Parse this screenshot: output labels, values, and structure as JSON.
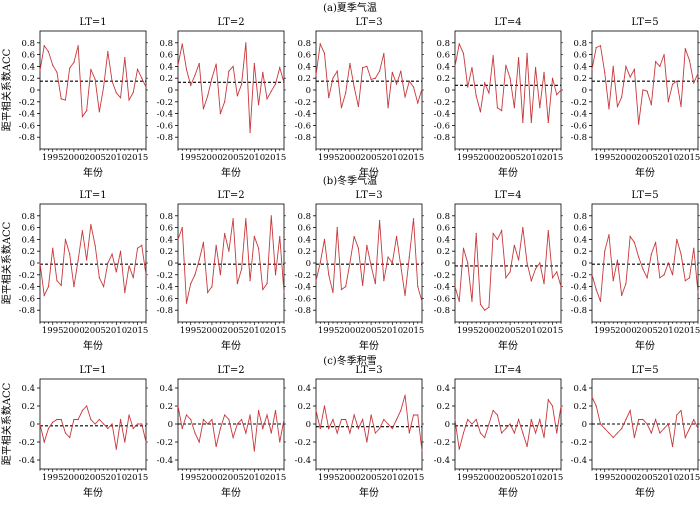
{
  "figure": {
    "xlabel": "年份",
    "ylabel": "距平相关系数ACC",
    "line_color": "#c8383c",
    "ref_color": "#000000"
  },
  "chart_data": [
    {
      "type": "line",
      "title": "(a)夏季气温",
      "xlabel": "年份",
      "ylabel": "距平相关系数ACC",
      "ylim": [
        -1,
        1
      ],
      "yticks": [
        0.8,
        0.6,
        0.4,
        0.2,
        0,
        -0.2,
        -0.4,
        -0.6,
        -0.8
      ],
      "xlim": [
        1992,
        2017
      ],
      "xticks": [
        1995,
        2000,
        2005,
        2010,
        2015
      ],
      "panels": [
        {
          "name": "LT=1",
          "ref": 0.15,
          "x_start": 1992,
          "values": [
            0.33,
            0.75,
            0.65,
            0.42,
            0.3,
            -0.15,
            -0.17,
            0.37,
            0.47,
            0.75,
            -0.45,
            -0.35,
            0.35,
            0.18,
            -0.37,
            0.05,
            0.65,
            0.15,
            -0.05,
            -0.13,
            0.55,
            -0.17,
            -0.04,
            0.35,
            0.2,
            0.05
          ]
        },
        {
          "name": "LT=2",
          "ref": 0.13,
          "x_start": 1992,
          "values": [
            0.42,
            0.78,
            0.35,
            0.08,
            0.25,
            0.45,
            -0.32,
            -0.1,
            0.2,
            0.44,
            -0.4,
            -0.2,
            0.32,
            0.4,
            -0.1,
            0.1,
            0.8,
            -0.72,
            0.45,
            -0.25,
            0.3,
            -0.15,
            -0.02,
            0.1,
            0.38,
            0.12
          ]
        },
        {
          "name": "LT=3",
          "ref": 0.15,
          "x_start": 1992,
          "values": [
            0.25,
            0.78,
            0.62,
            -0.13,
            0.2,
            0.32,
            -0.3,
            -0.05,
            0.45,
            0.05,
            -0.28,
            0.38,
            0.4,
            0.18,
            0.2,
            0.32,
            0.62,
            -0.3,
            0.3,
            0.1,
            0.32,
            -0.12,
            0.15,
            0.05,
            -0.22,
            0.02
          ]
        },
        {
          "name": "LT=4",
          "ref": 0.08,
          "x_start": 1992,
          "values": [
            0.4,
            0.78,
            0.62,
            0.05,
            0.38,
            -0.1,
            -0.37,
            0.12,
            -0.05,
            0.58,
            -0.3,
            -0.35,
            0.42,
            0.2,
            -0.3,
            0.55,
            -0.55,
            0.62,
            -0.55,
            0.38,
            -0.3,
            0.3,
            -0.55,
            0.2,
            -0.08,
            0.0
          ]
        },
        {
          "name": "LT=5",
          "ref": 0.15,
          "x_start": 1992,
          "values": [
            0.35,
            0.72,
            0.75,
            0.3,
            -0.32,
            0.4,
            -0.28,
            -0.12,
            0.4,
            0.22,
            0.35,
            -0.58,
            0.0,
            -0.02,
            -0.25,
            0.48,
            0.4,
            0.6,
            -0.2,
            0.1,
            0.15,
            -0.28,
            0.7,
            0.5,
            0.12,
            0.28
          ]
        }
      ]
    },
    {
      "type": "line",
      "title": "(b)冬季气温",
      "xlabel": "年份",
      "ylabel": "距平相关系数ACC",
      "ylim": [
        -1,
        1
      ],
      "yticks": [
        0.8,
        0.6,
        0.4,
        0.2,
        0,
        -0.2,
        -0.4,
        -0.6,
        -0.8
      ],
      "xlim": [
        1992,
        2017
      ],
      "xticks": [
        1995,
        2000,
        2005,
        2010,
        2015
      ],
      "panels": [
        {
          "name": "LT=1",
          "ref": -0.02,
          "x_start": 1992,
          "values": [
            0.0,
            -0.55,
            -0.4,
            0.25,
            -0.3,
            -0.38,
            0.4,
            0.15,
            -0.4,
            0.05,
            0.55,
            0.05,
            0.65,
            0.3,
            -0.25,
            -0.4,
            0.0,
            0.15,
            -0.15,
            0.2,
            -0.5,
            -0.05,
            -0.25,
            0.25,
            0.3,
            -0.2
          ]
        },
        {
          "name": "LT=2",
          "ref": -0.02,
          "x_start": 1992,
          "values": [
            0.4,
            0.6,
            -0.68,
            -0.35,
            -0.2,
            0.05,
            0.35,
            -0.5,
            -0.4,
            0.3,
            -0.2,
            0.5,
            0.2,
            0.75,
            -0.35,
            -0.1,
            0.75,
            -0.3,
            0.45,
            0.25,
            -0.45,
            -0.35,
            0.8,
            -0.2,
            0.45,
            -0.5
          ]
        },
        {
          "name": "LT=3",
          "ref": -0.02,
          "x_start": 1992,
          "values": [
            -0.3,
            0.0,
            0.4,
            -0.2,
            -0.5,
            0.6,
            -0.45,
            -0.4,
            0.0,
            0.45,
            0.25,
            -0.38,
            0.3,
            -0.05,
            -0.35,
            0.72,
            -0.3,
            0.1,
            0.0,
            0.45,
            -0.05,
            -0.55,
            0.1,
            0.75,
            -0.4,
            -0.65
          ]
        },
        {
          "name": "LT=4",
          "ref": -0.05,
          "x_start": 1992,
          "values": [
            -0.4,
            -0.65,
            0.25,
            0.0,
            -0.65,
            0.5,
            -0.7,
            -0.8,
            -0.75,
            0.5,
            0.4,
            0.55,
            -0.25,
            -0.15,
            0.3,
            0.05,
            0.6,
            0.0,
            -0.3,
            -0.1,
            0.0,
            -0.35,
            0.55,
            -0.25,
            -0.15,
            -0.4
          ]
        },
        {
          "name": "LT=5",
          "ref": -0.02,
          "x_start": 1992,
          "values": [
            -0.2,
            -0.45,
            -0.65,
            0.2,
            0.48,
            -0.3,
            0.05,
            -0.55,
            -0.35,
            0.45,
            0.35,
            0.1,
            -0.1,
            -0.25,
            0.15,
            0.35,
            -0.25,
            -0.2,
            0.0,
            -0.2,
            0.4,
            0.15,
            -0.3,
            -0.25,
            0.25,
            -0.5
          ]
        }
      ]
    },
    {
      "type": "line",
      "title": "(c)冬季积雪",
      "xlabel": "年份",
      "ylabel": "距平相关系数ACC",
      "ylim": [
        -0.5,
        0.5
      ],
      "yticks": [
        0.4,
        0.2,
        0,
        -0.2,
        -0.4
      ],
      "xlim": [
        1992,
        2017
      ],
      "xticks": [
        1995,
        2000,
        2005,
        2010,
        2015
      ],
      "panels": [
        {
          "name": "LT=1",
          "ref": -0.02,
          "x_start": 1992,
          "values": [
            0.0,
            -0.2,
            -0.05,
            0.02,
            0.05,
            0.05,
            -0.1,
            -0.15,
            0.05,
            0.05,
            0.15,
            0.2,
            0.05,
            0.0,
            0.05,
            0.0,
            -0.05,
            0.0,
            -0.28,
            0.05,
            -0.2,
            0.1,
            -0.05,
            0.0,
            0.0,
            -0.2
          ]
        },
        {
          "name": "LT=2",
          "ref": 0.0,
          "x_start": 1992,
          "values": [
            0.2,
            -0.05,
            0.1,
            0.05,
            -0.1,
            -0.2,
            0.05,
            0.0,
            0.05,
            -0.25,
            -0.05,
            0.1,
            0.05,
            -0.15,
            0.0,
            0.05,
            -0.1,
            0.1,
            -0.3,
            0.15,
            -0.05,
            0.1,
            -0.1,
            0.15,
            -0.2,
            0.05
          ]
        },
        {
          "name": "LT=3",
          "ref": -0.03,
          "x_start": 1992,
          "values": [
            0.15,
            -0.05,
            0.2,
            -0.05,
            0.05,
            -0.1,
            0.05,
            0.05,
            -0.1,
            0.1,
            -0.05,
            0.05,
            -0.2,
            0.1,
            -0.1,
            -0.05,
            0.05,
            0.0,
            -0.05,
            0.05,
            0.15,
            0.32,
            -0.1,
            0.1,
            0.1,
            -0.3
          ]
        },
        {
          "name": "LT=4",
          "ref": -0.02,
          "x_start": 1992,
          "values": [
            0.05,
            -0.28,
            -0.1,
            0.05,
            0.0,
            0.05,
            -0.1,
            -0.15,
            0.0,
            0.15,
            0.1,
            -0.1,
            -0.05,
            0.0,
            -0.1,
            0.05,
            -0.1,
            -0.25,
            0.05,
            -0.1,
            0.05,
            -0.15,
            0.27,
            0.2,
            -0.1,
            0.2
          ]
        },
        {
          "name": "LT=5",
          "ref": 0.0,
          "x_start": 1992,
          "values": [
            0.3,
            0.2,
            0.0,
            -0.05,
            -0.1,
            -0.15,
            -0.1,
            -0.05,
            0.05,
            0.15,
            -0.15,
            0.05,
            0.05,
            0.0,
            -0.1,
            0.05,
            -0.1,
            -0.05,
            0.0,
            -0.25,
            0.1,
            0.15,
            -0.15,
            -0.05,
            0.05,
            -0.05
          ]
        }
      ]
    }
  ]
}
